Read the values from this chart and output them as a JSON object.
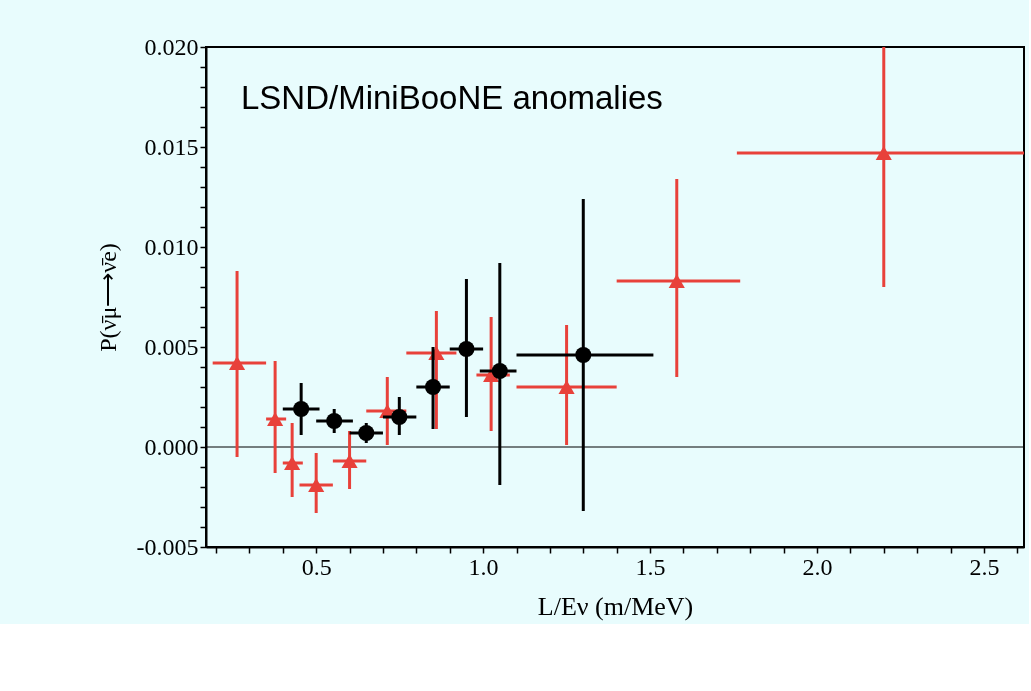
{
  "chart_data": {
    "type": "scatter",
    "xlabel": "L/Eν (m/MeV)",
    "ylabel": "P(ν̄μ⟶ν̄e)",
    "annotations": [
      "LSND/MiniBooNE anomalies"
    ],
    "xlim": [
      0.17,
      2.62
    ],
    "xticks": [
      {
        "value": 0.2,
        "label": null
      },
      {
        "value": 0.3,
        "label": null
      },
      {
        "value": 0.4,
        "label": null
      },
      0.5,
      {
        "value": 0.6,
        "label": null
      },
      {
        "value": 0.7,
        "label": null
      },
      {
        "value": 0.8,
        "label": null
      },
      {
        "value": 0.9,
        "label": null
      },
      {
        "value": 1.0,
        "label": "1.0"
      },
      {
        "value": 1.1,
        "label": null
      },
      {
        "value": 1.2,
        "label": null
      },
      {
        "value": 1.3,
        "label": null
      },
      {
        "value": 1.4,
        "label": null
      },
      1.5,
      {
        "value": 1.6,
        "label": null
      },
      {
        "value": 1.7,
        "label": null
      },
      {
        "value": 1.8,
        "label": null
      },
      {
        "value": 1.9,
        "label": null
      },
      {
        "value": 2.0,
        "label": "2.0"
      },
      {
        "value": 2.1,
        "label": null
      },
      {
        "value": 2.2,
        "label": null
      },
      {
        "value": 2.3,
        "label": null
      },
      {
        "value": 2.4,
        "label": null
      },
      2.5,
      {
        "value": 2.6,
        "label": null
      }
    ],
    "ylim": [
      -0.005,
      0.02
    ],
    "yticks": [
      -0.005,
      {
        "value": -0.004,
        "label": null
      },
      {
        "value": -0.003,
        "label": null
      },
      {
        "value": -0.002,
        "label": null
      },
      {
        "value": -0.001,
        "label": null
      },
      {
        "value": 0,
        "label": "0.000"
      },
      {
        "value": 0.001,
        "label": null
      },
      {
        "value": 0.002,
        "label": null
      },
      {
        "value": 0.003,
        "label": null
      },
      {
        "value": 0.004,
        "label": null
      },
      0.005,
      {
        "value": 0.006,
        "label": null
      },
      {
        "value": 0.007,
        "label": null
      },
      {
        "value": 0.008,
        "label": null
      },
      {
        "value": 0.009,
        "label": null
      },
      {
        "value": 0.01,
        "label": "0.010"
      },
      {
        "value": 0.011,
        "label": null
      },
      {
        "value": 0.012,
        "label": null
      },
      {
        "value": 0.013,
        "label": null
      },
      {
        "value": 0.014,
        "label": null
      },
      0.015,
      {
        "value": 0.016,
        "label": null
      },
      {
        "value": 0.017,
        "label": null
      },
      {
        "value": 0.018,
        "label": null
      },
      {
        "value": 0.019,
        "label": null
      },
      {
        "value": 0.02,
        "label": "0.020"
      }
    ],
    "grid": false,
    "ref_lines": [
      {
        "axis": "y",
        "value": 0,
        "color": "#000000"
      }
    ],
    "series": [
      {
        "color": "#e8413a",
        "marker": "triangle",
        "x": [
          0.263,
          0.377,
          0.428,
          0.5,
          0.6,
          0.713,
          0.86,
          1.024,
          1.25,
          1.58,
          2.2
        ],
        "values": [
          0.0042,
          0.0014,
          -0.0008,
          -0.0019,
          -0.0007,
          0.0018,
          0.0047,
          0.0036,
          0.003,
          0.0083,
          0.0147
        ],
        "errors": [
          [
            -0.0005,
            0.0088
          ],
          [
            -0.0013,
            0.0043
          ],
          [
            -0.0025,
            0.0012
          ],
          [
            -0.0033,
            -0.0003
          ],
          [
            -0.0021,
            0.0008
          ],
          [
            0.0001,
            0.0035
          ],
          [
            0.0009,
            0.0068
          ],
          [
            0.0008,
            0.0065
          ],
          [
            0.0001,
            0.0061
          ],
          [
            0.0035,
            0.0134
          ],
          [
            0.008,
            0.02
          ]
        ],
        "xerrors": [
          [
            0.19,
            0.35
          ],
          [
            0.35,
            0.41
          ],
          [
            0.4,
            0.46
          ],
          [
            0.45,
            0.55
          ],
          [
            0.55,
            0.65
          ],
          [
            0.65,
            0.77
          ],
          [
            0.77,
            0.92
          ],
          [
            0.98,
            1.08
          ],
          [
            1.1,
            1.4
          ],
          [
            1.4,
            1.77
          ],
          [
            1.76,
            2.62
          ]
        ]
      },
      {
        "color": "#000000",
        "marker": "circle",
        "x": [
          0.455,
          0.554,
          0.65,
          0.749,
          0.85,
          0.95,
          1.05,
          1.3
        ],
        "values": [
          0.0019,
          0.0013,
          0.0007,
          0.0015,
          0.003,
          0.0049,
          0.0038,
          0.0046
        ],
        "errors": [
          [
            0.0006,
            0.0032
          ],
          [
            0.0007,
            0.0019
          ],
          [
            0.0002,
            0.0012
          ],
          [
            0.0006,
            0.0025
          ],
          [
            0.0009,
            0.005
          ],
          [
            0.0015,
            0.0084
          ],
          [
            -0.0019,
            0.0092
          ],
          [
            -0.0032,
            0.0124
          ]
        ],
        "xerrors": [
          [
            0.4,
            0.51
          ],
          [
            0.5,
            0.61
          ],
          [
            0.6,
            0.7
          ],
          [
            0.7,
            0.8
          ],
          [
            0.8,
            0.9
          ],
          [
            0.9,
            1.0
          ],
          [
            0.99,
            1.1
          ],
          [
            1.1,
            1.51
          ]
        ]
      }
    ]
  }
}
